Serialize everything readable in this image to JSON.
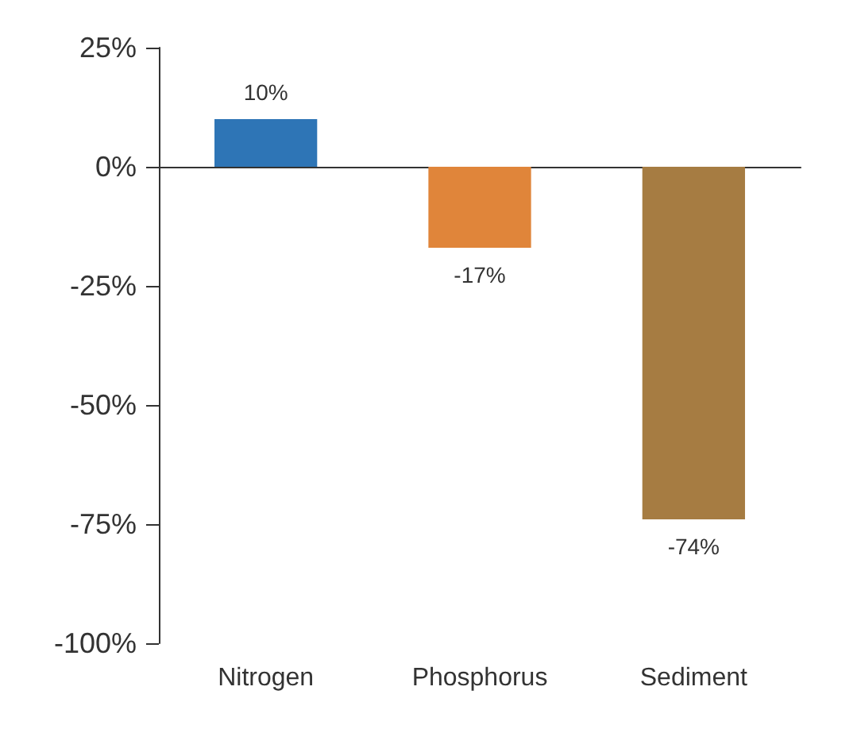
{
  "chart_data": {
    "type": "bar",
    "categories": [
      "Nitrogen",
      "Phosphorus",
      "Sediment"
    ],
    "values": [
      10,
      -17,
      -74
    ],
    "colors": [
      "#2e75b6",
      "#e0853a",
      "#a67c42"
    ],
    "value_labels": [
      "10%",
      "-17%",
      "-74%"
    ],
    "ylim": [
      -100,
      25
    ],
    "yticks": [
      {
        "value": -100,
        "label": "-100%"
      },
      {
        "value": -75,
        "label": "-75%"
      },
      {
        "value": -50,
        "label": "-50%"
      },
      {
        "value": -25,
        "label": "-25%"
      },
      {
        "value": 0,
        "label": "0%"
      },
      {
        "value": 25,
        "label": "25%"
      }
    ]
  }
}
